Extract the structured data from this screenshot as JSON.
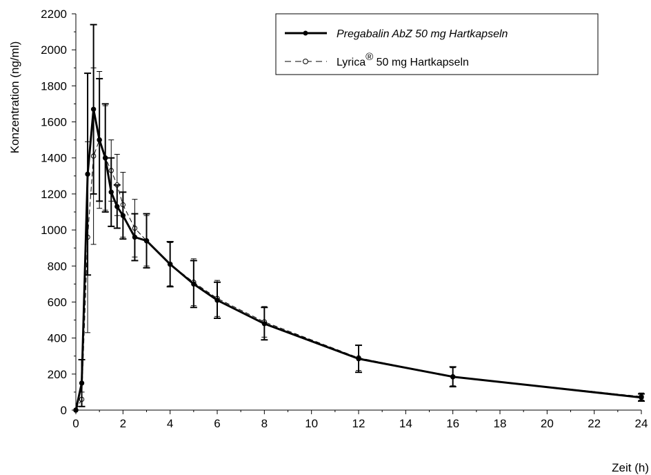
{
  "chart_data": {
    "type": "line",
    "xlabel": "Zeit (h)",
    "ylabel": "Konzentration (ng/ml)",
    "xlim": [
      0,
      24
    ],
    "ylim": [
      0,
      2200
    ],
    "xticks": [
      0,
      2,
      4,
      6,
      8,
      10,
      12,
      14,
      16,
      18,
      20,
      22,
      24
    ],
    "yticks": [
      0,
      200,
      400,
      600,
      800,
      1000,
      1200,
      1400,
      1600,
      1800,
      2000,
      2200
    ],
    "grid": false,
    "legend_position": "top-right",
    "legend": {
      "entry_a": "Pregabalin AbZ 50 mg Hartkapseln",
      "entry_b_prefix": "Lyrica",
      "entry_b_mark": "®",
      "entry_b_suffix": " 50 mg Hartkapseln"
    },
    "series": [
      {
        "name": "Pregabalin AbZ 50 mg Hartkapseln",
        "style": "solid",
        "marker": "filled-circle",
        "color": "#000000",
        "x": [
          0,
          0.25,
          0.5,
          0.75,
          1.0,
          1.25,
          1.5,
          1.75,
          2.0,
          2.5,
          3.0,
          4.0,
          5.0,
          6.0,
          8.0,
          12.0,
          16.0,
          24.0
        ],
        "y": [
          0,
          150,
          1310,
          1670,
          1500,
          1400,
          1210,
          1130,
          1080,
          960,
          940,
          810,
          700,
          610,
          480,
          285,
          185,
          70
        ],
        "err": [
          0,
          130,
          560,
          470,
          340,
          300,
          190,
          120,
          130,
          130,
          150,
          125,
          130,
          100,
          90,
          75,
          55,
          20
        ]
      },
      {
        "name": "Lyrica® 50 mg Hartkapseln",
        "style": "dashed",
        "marker": "open-circle",
        "color": "#000000",
        "x": [
          0,
          0.25,
          0.5,
          0.75,
          1.0,
          1.25,
          1.5,
          1.75,
          2.0,
          2.5,
          3.0,
          4.0,
          5.0,
          6.0,
          8.0,
          12.0,
          16.0,
          24.0
        ],
        "y": [
          0,
          60,
          960,
          1410,
          1500,
          1400,
          1330,
          1250,
          1140,
          1010,
          940,
          810,
          710,
          620,
          490,
          290,
          185,
          75
        ],
        "err": [
          0,
          40,
          530,
          490,
          380,
          290,
          170,
          170,
          180,
          160,
          140,
          120,
          130,
          100,
          85,
          70,
          50,
          20
        ]
      }
    ]
  }
}
